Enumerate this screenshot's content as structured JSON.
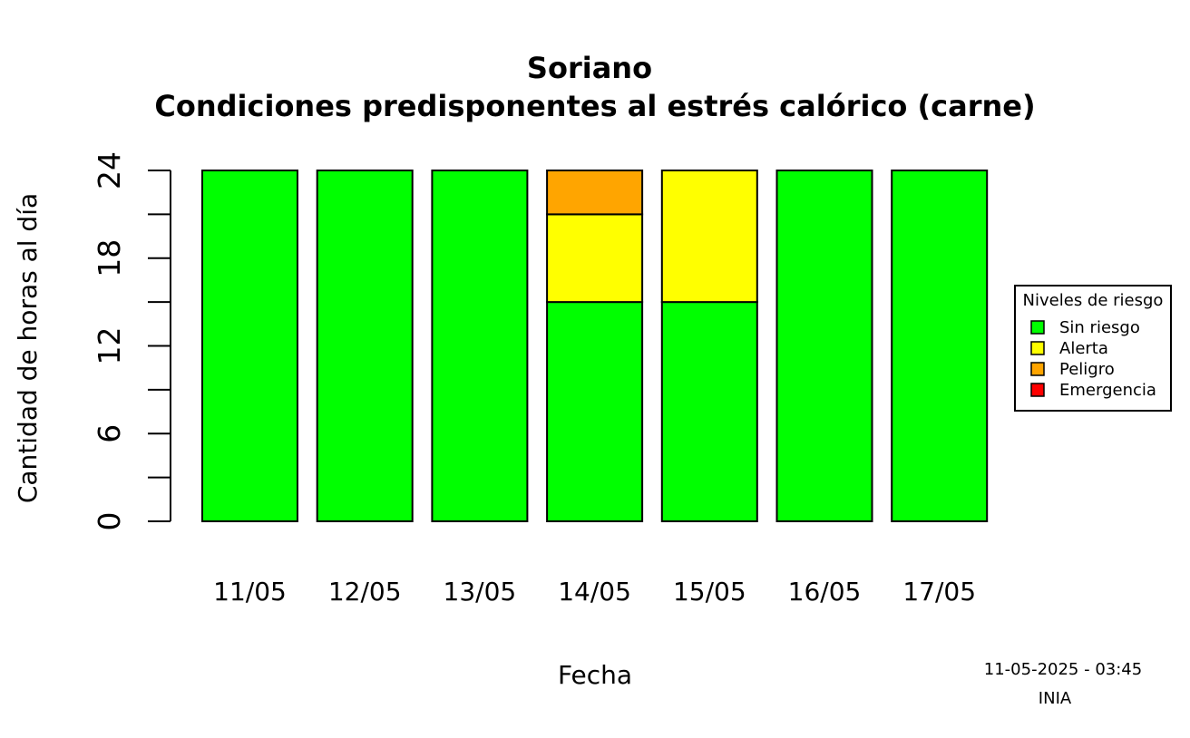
{
  "chart_data": {
    "type": "bar",
    "stacked": true,
    "title": "Soriano",
    "subtitle": "Condiciones predisponentes al estrés calórico (carne)",
    "xlabel": "Fecha",
    "ylabel": "Cantidad de horas al día",
    "ylim": [
      0,
      24
    ],
    "yticks": [
      0,
      6,
      12,
      18,
      24
    ],
    "yticks_labeled": [
      "0",
      "6",
      "12",
      "18",
      "24"
    ],
    "yminor_ticks": [
      3,
      9,
      15,
      21
    ],
    "categories": [
      "11/05",
      "12/05",
      "13/05",
      "14/05",
      "15/05",
      "16/05",
      "17/05"
    ],
    "series": [
      {
        "name": "Sin riesgo",
        "color": "#00ff00",
        "values": [
          24,
          24,
          24,
          15,
          15,
          24,
          24
        ]
      },
      {
        "name": "Alerta",
        "color": "#ffff00",
        "values": [
          0,
          0,
          0,
          6,
          9,
          0,
          0
        ]
      },
      {
        "name": "Peligro",
        "color": "#ffa500",
        "values": [
          0,
          0,
          0,
          3,
          0,
          0,
          0
        ]
      },
      {
        "name": "Emergencia",
        "color": "#ff0000",
        "values": [
          0,
          0,
          0,
          0,
          0,
          0,
          0
        ]
      }
    ],
    "legend": {
      "title": "Niveles de riesgo",
      "placement": "right"
    },
    "grid": false
  },
  "footer": {
    "timestamp": "11-05-2025 - 03:45",
    "source": "INIA"
  }
}
